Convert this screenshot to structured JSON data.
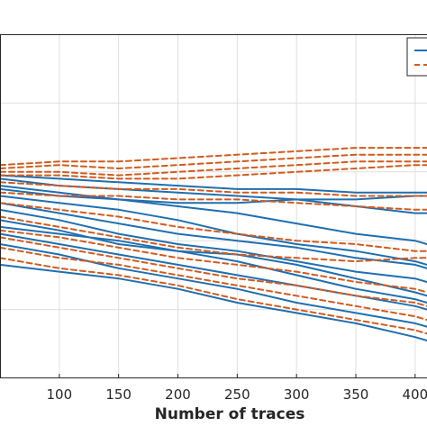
{
  "chart_data": {
    "type": "line",
    "xlabel": "Number of traces",
    "ylabel": "",
    "xlim": [
      50,
      410
    ],
    "ylim": [
      0,
      1
    ],
    "xticks": [
      "100",
      "150",
      "200",
      "250",
      "300",
      "350",
      "400"
    ],
    "xtick_values": [
      100,
      150,
      200,
      250,
      300,
      350,
      400
    ],
    "ytick_values": [
      0.2,
      0.4,
      0.6,
      0.8
    ],
    "grid": true,
    "legend_placement": "top-right",
    "colors": {
      "solid": "#1f6fb0",
      "dashed": "#d45a1c"
    },
    "x": [
      50,
      100,
      150,
      200,
      250,
      300,
      350,
      400,
      410
    ],
    "series": [
      {
        "style": "solid",
        "values": [
          0.33,
          0.31,
          0.29,
          0.26,
          0.22,
          0.19,
          0.16,
          0.12,
          0.11
        ]
      },
      {
        "style": "solid",
        "values": [
          0.39,
          0.36,
          0.32,
          0.29,
          0.26,
          0.22,
          0.19,
          0.16,
          0.15
        ]
      },
      {
        "style": "solid",
        "values": [
          0.42,
          0.39,
          0.36,
          0.33,
          0.3,
          0.27,
          0.24,
          0.21,
          0.2
        ]
      },
      {
        "style": "solid",
        "values": [
          0.44,
          0.42,
          0.4,
          0.37,
          0.34,
          0.3,
          0.26,
          0.23,
          0.22
        ]
      },
      {
        "style": "solid",
        "values": [
          0.46,
          0.43,
          0.39,
          0.37,
          0.36,
          0.33,
          0.29,
          0.25,
          0.24
        ]
      },
      {
        "style": "solid",
        "values": [
          0.49,
          0.46,
          0.42,
          0.39,
          0.37,
          0.34,
          0.31,
          0.29,
          0.28
        ]
      },
      {
        "style": "solid",
        "values": [
          0.51,
          0.48,
          0.45,
          0.42,
          0.4,
          0.38,
          0.35,
          0.33,
          0.32
        ]
      },
      {
        "style": "solid",
        "values": [
          0.53,
          0.51,
          0.49,
          0.46,
          0.42,
          0.39,
          0.37,
          0.34,
          0.33
        ]
      },
      {
        "style": "solid",
        "values": [
          0.55,
          0.53,
          0.52,
          0.5,
          0.48,
          0.45,
          0.42,
          0.4,
          0.39
        ]
      },
      {
        "style": "solid",
        "values": [
          0.56,
          0.54,
          0.52,
          0.51,
          0.51,
          0.52,
          0.52,
          0.53,
          0.53
        ]
      },
      {
        "style": "solid",
        "values": [
          0.58,
          0.56,
          0.55,
          0.54,
          0.53,
          0.52,
          0.5,
          0.48,
          0.48
        ]
      },
      {
        "style": "solid",
        "values": [
          0.59,
          0.58,
          0.57,
          0.56,
          0.55,
          0.55,
          0.54,
          0.54,
          0.54
        ]
      },
      {
        "style": "dashed",
        "values": [
          0.35,
          0.32,
          0.3,
          0.27,
          0.23,
          0.2,
          0.17,
          0.14,
          0.13
        ]
      },
      {
        "style": "dashed",
        "values": [
          0.38,
          0.35,
          0.33,
          0.3,
          0.27,
          0.24,
          0.21,
          0.18,
          0.17
        ]
      },
      {
        "style": "dashed",
        "values": [
          0.41,
          0.38,
          0.35,
          0.32,
          0.29,
          0.27,
          0.24,
          0.22,
          0.21
        ]
      },
      {
        "style": "dashed",
        "values": [
          0.43,
          0.41,
          0.38,
          0.35,
          0.33,
          0.31,
          0.28,
          0.26,
          0.25
        ]
      },
      {
        "style": "dashed",
        "values": [
          0.47,
          0.44,
          0.41,
          0.38,
          0.36,
          0.35,
          0.34,
          0.35,
          0.35
        ]
      },
      {
        "style": "dashed",
        "values": [
          0.51,
          0.49,
          0.47,
          0.44,
          0.42,
          0.4,
          0.39,
          0.37,
          0.37
        ]
      },
      {
        "style": "dashed",
        "values": [
          0.54,
          0.53,
          0.53,
          0.52,
          0.52,
          0.51,
          0.5,
          0.49,
          0.49
        ]
      },
      {
        "style": "dashed",
        "values": [
          0.57,
          0.56,
          0.55,
          0.55,
          0.54,
          0.54,
          0.53,
          0.53,
          0.53
        ]
      },
      {
        "style": "dashed",
        "values": [
          0.59,
          0.59,
          0.58,
          0.58,
          0.59,
          0.6,
          0.61,
          0.62,
          0.62
        ]
      },
      {
        "style": "dashed",
        "values": [
          0.6,
          0.6,
          0.59,
          0.6,
          0.61,
          0.62,
          0.63,
          0.63,
          0.63
        ]
      },
      {
        "style": "dashed",
        "values": [
          0.61,
          0.62,
          0.61,
          0.62,
          0.63,
          0.64,
          0.65,
          0.65,
          0.65
        ]
      },
      {
        "style": "dashed",
        "values": [
          0.62,
          0.63,
          0.63,
          0.64,
          0.65,
          0.66,
          0.67,
          0.67,
          0.67
        ]
      }
    ]
  }
}
